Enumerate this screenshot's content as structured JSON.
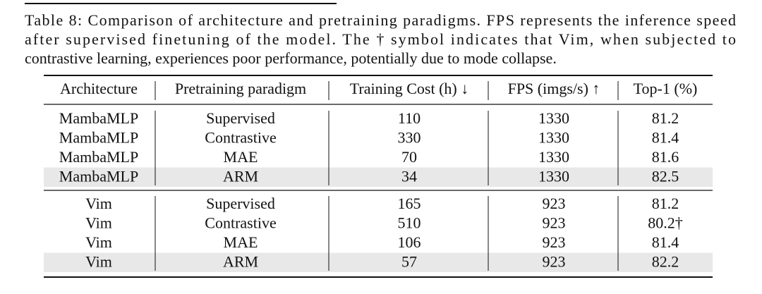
{
  "caption_lines": [
    "Table 8: Comparison of architecture and pretraining paradigms. FPS represents the inference speed",
    "after supervised finetuning of the model.  The † symbol indicates that Vim, when subjected to",
    "contrastive learning, experiences poor performance, potentially due to mode collapse."
  ],
  "table": {
    "header": [
      "Architecture",
      "Pretraining paradigm",
      "Training Cost (h) ↓",
      "FPS (imgs/s) ↑",
      "Top-1 (%)"
    ],
    "groups": [
      [
        [
          "MambaMLP",
          "Supervised",
          "110",
          "1330",
          "81.2"
        ],
        [
          "MambaMLP",
          "Contrastive",
          "330",
          "1330",
          "81.4"
        ],
        [
          "MambaMLP",
          "MAE",
          "70",
          "1330",
          "81.6"
        ],
        [
          "MambaMLP",
          "ARM",
          "34",
          "1330",
          "82.5"
        ]
      ],
      [
        [
          "Vim",
          "Supervised",
          "165",
          "923",
          "81.2"
        ],
        [
          "Vim",
          "Contrastive",
          "510",
          "923",
          "80.2†"
        ],
        [
          "Vim",
          "MAE",
          "106",
          "923",
          "81.4"
        ],
        [
          "Vim",
          "ARM",
          "57",
          "923",
          "82.2"
        ]
      ]
    ]
  }
}
